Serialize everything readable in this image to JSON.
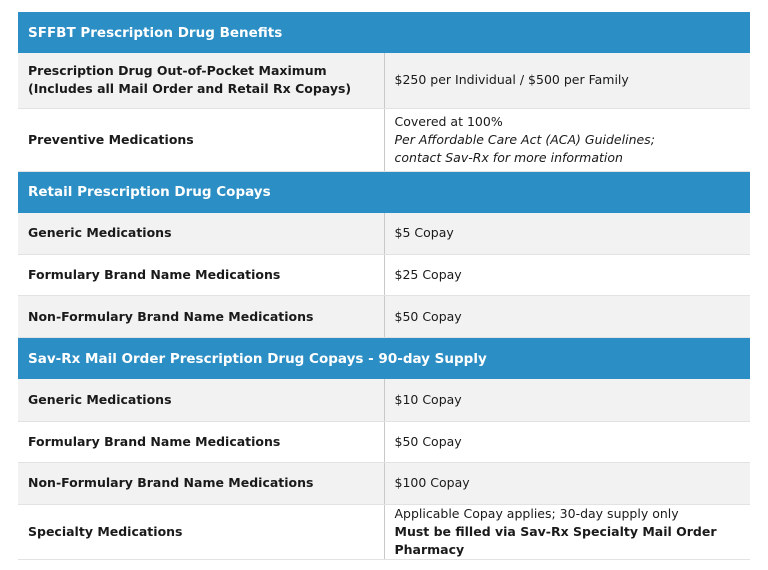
{
  "sections": [
    {
      "title": "SFFBT Prescription Drug Benefits",
      "rows": [
        {
          "label": [
            "Prescription Drug Out-of-Pocket Maximum",
            "(Includes all Mail Order and Retail Rx Copays)"
          ],
          "value": [
            "$250 per Individual / $500 per Family"
          ]
        },
        {
          "label": [
            "Preventive Medications"
          ],
          "value": [
            "Covered at 100%",
            "Per Affordable Care Act (ACA) Guidelines;",
            "contact Sav-Rx for more information"
          ]
        }
      ]
    },
    {
      "title": "Retail Prescription Drug Copays",
      "rows": [
        {
          "label": [
            "Generic Medications"
          ],
          "value": [
            "$5 Copay"
          ]
        },
        {
          "label": [
            "Formulary Brand Name Medications"
          ],
          "value": [
            "$25 Copay"
          ]
        },
        {
          "label": [
            "Non-Formulary Brand Name Medications"
          ],
          "value": [
            "$50 Copay"
          ]
        }
      ]
    },
    {
      "title": "Sav-Rx Mail Order Prescription Drug Copays - 90-day Supply",
      "rows": [
        {
          "label": [
            "Generic Medications"
          ],
          "value": [
            "$10 Copay"
          ]
        },
        {
          "label": [
            "Formulary Brand Name Medications"
          ],
          "value": [
            "$50 Copay"
          ]
        },
        {
          "label": [
            "Non-Formulary Brand Name Medications"
          ],
          "value": [
            "$100 Copay"
          ]
        },
        {
          "label": [
            "Specialty Medications"
          ],
          "value": [
            "Applicable Copay applies; 30-day supply only",
            "Must be filled via Sav-Rx Specialty Mail Order Pharmacy"
          ]
        }
      ]
    }
  ]
}
